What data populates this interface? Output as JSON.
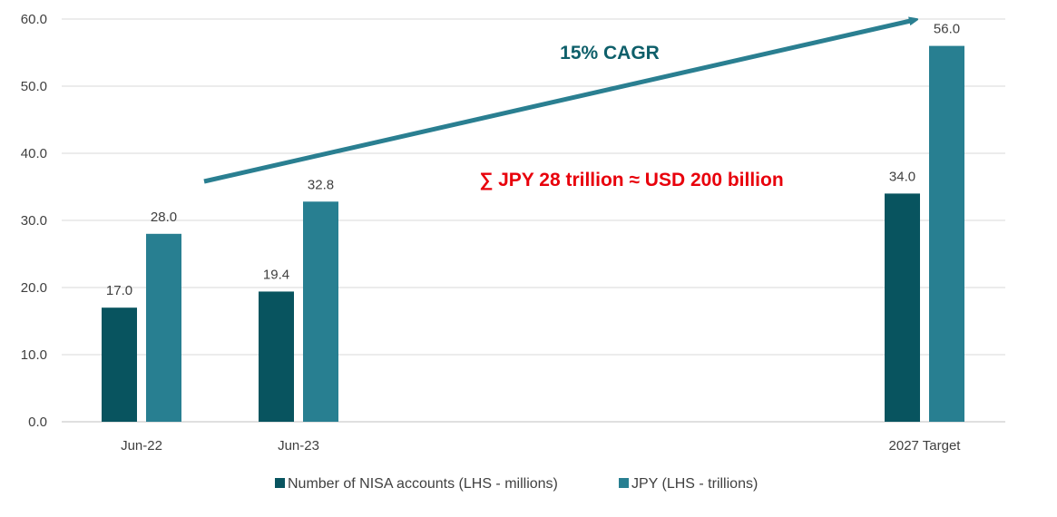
{
  "chart_data": {
    "type": "bar",
    "categories": [
      "Jun-22",
      "Jun-23",
      "2027 Target"
    ],
    "series": [
      {
        "name": "Number of NISA accounts (LHS - millions)",
        "values": [
          17.0,
          19.4,
          34.0
        ],
        "color": "#08545f"
      },
      {
        "name": "JPY (LHS - trillions)",
        "values": [
          28.0,
          32.8,
          56.0
        ],
        "color": "#287f91"
      }
    ],
    "ylim": [
      0,
      60
    ],
    "yticks": [
      "0.0",
      "10.0",
      "20.0",
      "30.0",
      "40.0",
      "50.0",
      "60.0"
    ],
    "grid": true,
    "legend_position": "bottom-center",
    "annotations": {
      "cagr": {
        "text": "15% CAGR",
        "color": "#0e5f6a"
      },
      "sum": {
        "text": "∑ JPY 28 trillion ≈ USD 200 billion",
        "color": "#e8000b"
      },
      "arrow_color": "#2a7f91"
    }
  }
}
